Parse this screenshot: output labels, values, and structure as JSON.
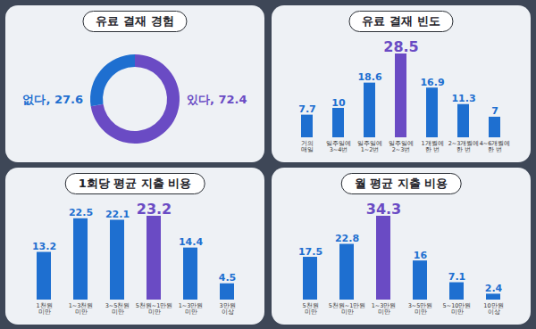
{
  "chart_data": [
    {
      "type": "donut",
      "title": "유료 결재 경험",
      "categories": [
        "있다",
        "없다"
      ],
      "values": [
        72.4,
        27.6
      ],
      "value_labels": [
        "있다, 72.4",
        "없다, 27.6"
      ],
      "colors": [
        "#6a4bc4",
        "#1e6fd0"
      ],
      "data_labels": true
    },
    {
      "type": "bar",
      "title": "유료 결재 빈도",
      "categories": [
        "거의 매일",
        "일주일에 3~4번",
        "일주일에 1~2번",
        "일주일에 2~3번",
        "1개월에 한 번",
        "2~3개월에 한 번",
        "4~6개월에 한 번"
      ],
      "values": [
        7.7,
        10,
        18.6,
        28.5,
        16.9,
        11.3,
        7
      ],
      "colors": [
        "#1e6fd0",
        "#1e6fd0",
        "#1e6fd0",
        "#6a4bc4",
        "#1e6fd0",
        "#1e6fd0",
        "#1e6fd0"
      ],
      "data_labels": true,
      "tick_labels": "x"
    },
    {
      "type": "bar",
      "title": "1회당 평균 지출 비용",
      "categories": [
        "1천원 미만",
        "1~3천원 미만",
        "3~5천원 미만",
        "5천원~1만원 미만",
        "1~3만원 미만",
        "3만원 이상"
      ],
      "values": [
        13.2,
        22.5,
        22.1,
        23.2,
        14.4,
        4.5
      ],
      "colors": [
        "#1e6fd0",
        "#1e6fd0",
        "#1e6fd0",
        "#6a4bc4",
        "#1e6fd0",
        "#1e6fd0"
      ],
      "data_labels": true,
      "tick_labels": "x"
    },
    {
      "type": "bar",
      "title": "월 평균 지출 비용",
      "categories": [
        "5천원 미만",
        "5천원~1만원 미만",
        "1~3만원 미만",
        "3~5만원 미만",
        "5~10만원 미만",
        "10만원 이상"
      ],
      "values": [
        17.5,
        22.8,
        34.3,
        16,
        7.1,
        2.4
      ],
      "colors": [
        "#1e6fd0",
        "#1e6fd0",
        "#6a4bc4",
        "#1e6fd0",
        "#1e6fd0",
        "#1e6fd0"
      ],
      "data_labels": true,
      "tick_labels": "x"
    }
  ]
}
